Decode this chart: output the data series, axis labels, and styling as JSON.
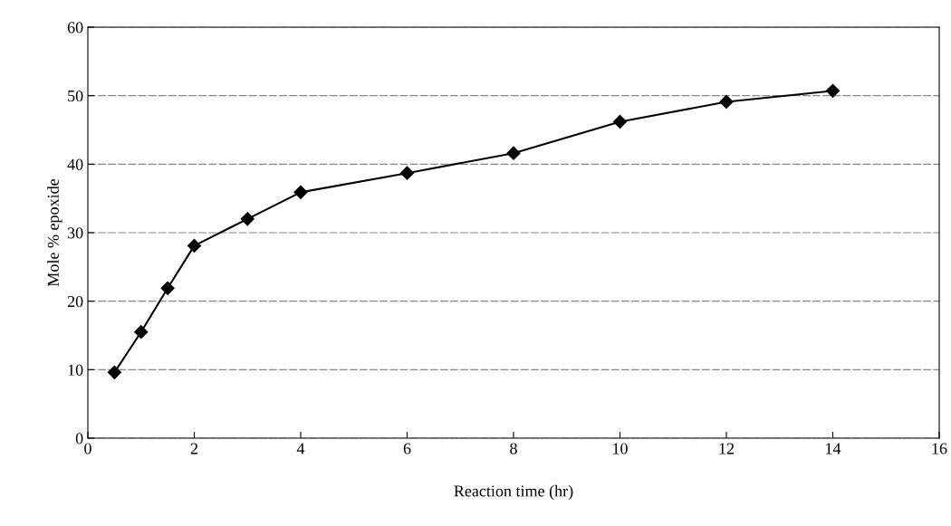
{
  "chart_data": {
    "type": "line",
    "xlabel": "Reaction time (hr)",
    "ylabel": "Mole % epoxide",
    "x": [
      0.5,
      1,
      1.5,
      2,
      3,
      4,
      6,
      8,
      10,
      12,
      14
    ],
    "series": [
      {
        "color": "#000000",
        "values": [
          9.6,
          15.5,
          21.9,
          28.1,
          32.0,
          35.9,
          38.7,
          41.6,
          46.2,
          49.1,
          50.7
        ]
      }
    ],
    "xlim": [
      0,
      16
    ],
    "xticks": [
      0,
      2,
      4,
      6,
      8,
      10,
      12,
      14,
      16
    ],
    "ylim": [
      0,
      60
    ],
    "yticks": [
      0,
      10,
      20,
      30,
      40,
      50,
      60
    ],
    "grid": "y",
    "marker": "diamond",
    "line_style": "solid",
    "legend": false
  }
}
